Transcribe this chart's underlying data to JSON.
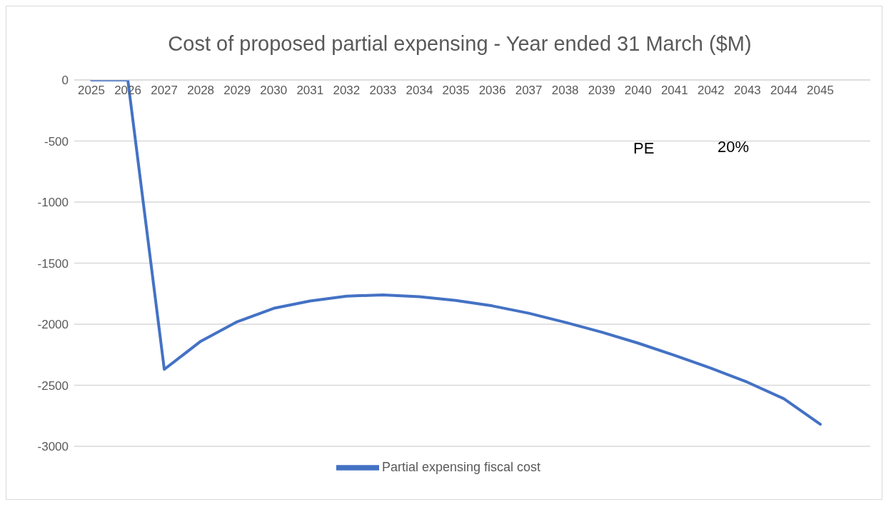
{
  "chart_data": {
    "type": "line",
    "title": "Cost of proposed partial expensing - Year ended 31 March ($M)",
    "categories": [
      "2025",
      "2026",
      "2027",
      "2028",
      "2029",
      "2030",
      "2031",
      "2032",
      "2033",
      "2034",
      "2035",
      "2036",
      "2037",
      "2038",
      "2039",
      "2040",
      "2041",
      "2042",
      "2043",
      "2044",
      "2045"
    ],
    "series": [
      {
        "name": "Partial expensing fiscal cost",
        "color": "#4472c4",
        "values": [
          0,
          0,
          -2370,
          -2140,
          -1980,
          -1870,
          -1810,
          -1770,
          -1760,
          -1775,
          -1805,
          -1850,
          -1910,
          -1985,
          -2065,
          -2155,
          -2255,
          -2360,
          -2475,
          -2610,
          -2820
        ]
      }
    ],
    "ylim": [
      -3000,
      0
    ],
    "yticks": [
      0,
      -500,
      -1000,
      -1500,
      -2000,
      -2500,
      -3000
    ],
    "grid": "y",
    "legend": "bottom",
    "line_style": "solid",
    "annotations": [
      "PE",
      "20%"
    ]
  }
}
